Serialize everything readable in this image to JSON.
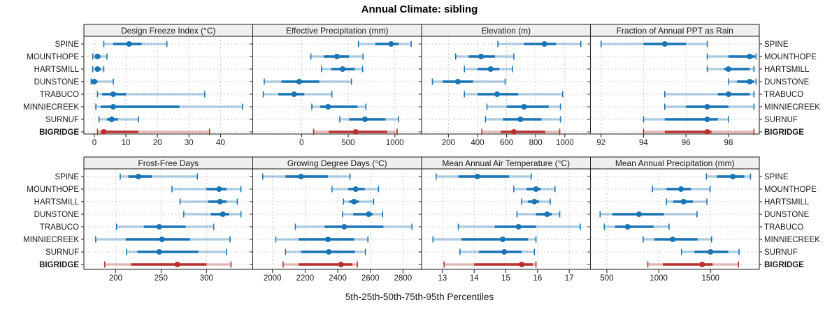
{
  "title": "Annual Climate: sibling",
  "caption": "5th-25th-50th-75th-95th Percentiles",
  "percentile_labels": [
    "5th",
    "25th",
    "50th",
    "75th",
    "95th"
  ],
  "sites": [
    "SPINE",
    "MOUNTHOPE",
    "HARTSMILL",
    "DUNSTONE",
    "TRABUCO",
    "MINNIECREEK",
    "SURNUF",
    "BIGRIDGE"
  ],
  "highlight_site": "BIGRIDGE",
  "colors": {
    "series": "#1b74b4",
    "highlight": "#b9332e",
    "grid": "#c9c9c9",
    "strip_bg": "#efefef",
    "border": "#1a1a1a",
    "text": "#1a1a1a"
  },
  "chart_data": [
    {
      "type": "dot-whisker",
      "title": "Design Freeze Index (°C)",
      "row": 0,
      "col": 0,
      "xlim": [
        -3.3,
        50.2
      ],
      "ticks": [
        0,
        10,
        20,
        30,
        40
      ],
      "grid": true,
      "series": [
        {
          "name": "SPINE",
          "values": [
            3,
            6,
            11,
            15,
            23
          ]
        },
        {
          "name": "MOUNTHOPE",
          "values": [
            -0.5,
            0.5,
            1,
            2,
            4
          ]
        },
        {
          "name": "HARTSMILL",
          "values": [
            -0.5,
            0.5,
            1,
            2,
            3
          ]
        },
        {
          "name": "DUNSTONE",
          "values": [
            -1,
            -0.5,
            0,
            1,
            6
          ]
        },
        {
          "name": "TRABUCO",
          "values": [
            1,
            2.5,
            6,
            10,
            35
          ]
        },
        {
          "name": "MINNIECREEK",
          "values": [
            0.5,
            2,
            6,
            27,
            47
          ]
        },
        {
          "name": "SURNUF",
          "values": [
            1.5,
            4,
            5.5,
            7.5,
            14
          ]
        },
        {
          "name": "BIGRIDGE",
          "values": [
            1,
            2,
            3,
            14,
            36.5
          ]
        }
      ]
    },
    {
      "type": "dot-whisker",
      "title": "Effective Precipitation (mm)",
      "row": 0,
      "col": 1,
      "xlim": [
        -523,
        1287
      ],
      "ticks": [
        0,
        500,
        1000
      ],
      "grid": true,
      "series": [
        {
          "name": "SPINE",
          "values": [
            610,
            790,
            960,
            1040,
            1175
          ]
        },
        {
          "name": "MOUNTHOPE",
          "values": [
            100,
            240,
            380,
            510,
            660
          ]
        },
        {
          "name": "HARTSMILL",
          "values": [
            215,
            320,
            440,
            570,
            655
          ]
        },
        {
          "name": "DUNSTONE",
          "values": [
            -400,
            -215,
            -25,
            190,
            535
          ]
        },
        {
          "name": "TRABUCO",
          "values": [
            -410,
            -250,
            -80,
            30,
            325
          ]
        },
        {
          "name": "MINNIECREEK",
          "values": [
            110,
            200,
            285,
            600,
            690
          ]
        },
        {
          "name": "SURNUF",
          "values": [
            410,
            510,
            680,
            900,
            1040
          ]
        },
        {
          "name": "BIGRIDGE",
          "values": [
            130,
            290,
            580,
            920,
            1025
          ]
        }
      ]
    },
    {
      "type": "dot-whisker",
      "title": "Elevation (m)",
      "row": 0,
      "col": 2,
      "xlim": [
        16,
        1176
      ],
      "ticks": [
        200,
        400,
        600,
        800,
        1000
      ],
      "grid": true,
      "series": [
        {
          "name": "SPINE",
          "values": [
            540,
            720,
            860,
            940,
            1110
          ]
        },
        {
          "name": "MOUNTHOPE",
          "values": [
            250,
            340,
            425,
            520,
            650
          ]
        },
        {
          "name": "HARTSMILL",
          "values": [
            310,
            400,
            490,
            550,
            640
          ]
        },
        {
          "name": "DUNSTONE",
          "values": [
            90,
            160,
            265,
            370,
            590
          ]
        },
        {
          "name": "TRABUCO",
          "values": [
            310,
            400,
            535,
            680,
            985
          ]
        },
        {
          "name": "MINNIECREEK",
          "values": [
            465,
            600,
            720,
            890,
            970
          ]
        },
        {
          "name": "SURNUF",
          "values": [
            455,
            575,
            695,
            840,
            970
          ]
        },
        {
          "name": "BIGRIDGE",
          "values": [
            430,
            560,
            650,
            865,
            965
          ]
        }
      ]
    },
    {
      "type": "dot-whisker",
      "title": "Fraction of Annual PPT as Rain",
      "row": 0,
      "col": 3,
      "xlim": [
        91.5,
        99.45
      ],
      "ticks": [
        92,
        94,
        96,
        98
      ],
      "grid": true,
      "series": [
        {
          "name": "SPINE",
          "values": [
            92,
            94,
            95,
            96,
            97
          ]
        },
        {
          "name": "MOUNTHOPE",
          "values": [
            97,
            98,
            99,
            99.25,
            99.3
          ]
        },
        {
          "name": "HARTSMILL",
          "values": [
            97,
            97.8,
            98,
            99,
            99.2
          ]
        },
        {
          "name": "DUNSTONE",
          "values": [
            98,
            98.4,
            99,
            99.2,
            99.3
          ]
        },
        {
          "name": "TRABUCO",
          "values": [
            95,
            97.5,
            98,
            99,
            99.2
          ]
        },
        {
          "name": "MINNIECREEK",
          "values": [
            95,
            96,
            97,
            98,
            99.2
          ]
        },
        {
          "name": "SURNUF",
          "values": [
            94,
            95,
            97,
            97.5,
            98
          ]
        },
        {
          "name": "BIGRIDGE",
          "values": [
            94,
            95,
            97,
            97.2,
            99.2
          ]
        }
      ]
    },
    {
      "type": "dot-whisker",
      "title": "Frost-Free Days",
      "row": 1,
      "col": 0,
      "xlim": [
        165,
        351
      ],
      "ticks": [
        200,
        250,
        300
      ],
      "grid": true,
      "series": [
        {
          "name": "SPINE",
          "values": [
            205,
            214,
            225,
            240,
            290
          ]
        },
        {
          "name": "MOUNTHOPE",
          "values": [
            262,
            300,
            314,
            322,
            338
          ]
        },
        {
          "name": "HARTSMILL",
          "values": [
            271,
            302,
            315,
            322,
            334
          ]
        },
        {
          "name": "DUNSTONE",
          "values": [
            275,
            305,
            318,
            325,
            338
          ]
        },
        {
          "name": "TRABUCO",
          "values": [
            201,
            231,
            248,
            277,
            308
          ]
        },
        {
          "name": "MINNIECREEK",
          "values": [
            178,
            211,
            251,
            282,
            326
          ]
        },
        {
          "name": "SURNUF",
          "values": [
            212,
            224,
            248,
            291,
            322
          ]
        },
        {
          "name": "BIGRIDGE",
          "values": [
            188,
            217,
            268,
            300,
            327
          ]
        }
      ]
    },
    {
      "type": "dot-whisker",
      "title": "Growing Degree Days (°C)",
      "row": 1,
      "col": 1,
      "xlim": [
        1879,
        2914
      ],
      "ticks": [
        2000,
        2200,
        2400,
        2600,
        2800
      ],
      "grid": true,
      "series": [
        {
          "name": "SPINE",
          "values": [
            1940,
            2080,
            2175,
            2340,
            2475
          ]
        },
        {
          "name": "MOUNTHOPE",
          "values": [
            2365,
            2465,
            2510,
            2565,
            2650
          ]
        },
        {
          "name": "HARTSMILL",
          "values": [
            2435,
            2470,
            2500,
            2530,
            2620
          ]
        },
        {
          "name": "DUNSTONE",
          "values": [
            2430,
            2495,
            2590,
            2615,
            2675
          ]
        },
        {
          "name": "TRABUCO",
          "values": [
            2140,
            2320,
            2440,
            2680,
            2855
          ]
        },
        {
          "name": "MINNIECREEK",
          "values": [
            2020,
            2160,
            2340,
            2500,
            2585
          ]
        },
        {
          "name": "SURNUF",
          "values": [
            2080,
            2175,
            2345,
            2505,
            2570
          ]
        },
        {
          "name": "BIGRIDGE",
          "values": [
            2065,
            2160,
            2420,
            2490,
            2520
          ]
        }
      ]
    },
    {
      "type": "dot-whisker",
      "title": "Mean Annual Air Temperature (°C)",
      "row": 1,
      "col": 2,
      "xlim": [
        12.34,
        17.67
      ],
      "ticks": [
        13,
        14,
        15,
        16,
        17
      ],
      "grid": true,
      "series": [
        {
          "name": "SPINE",
          "values": [
            12.8,
            13.5,
            14.1,
            15.1,
            15.8
          ]
        },
        {
          "name": "MOUNTHOPE",
          "values": [
            15.25,
            15.65,
            15.95,
            16.1,
            16.55
          ]
        },
        {
          "name": "HARTSMILL",
          "values": [
            15.5,
            15.7,
            15.9,
            16.05,
            16.4
          ]
        },
        {
          "name": "DUNSTONE",
          "values": [
            15.35,
            15.95,
            16.3,
            16.45,
            16.7
          ]
        },
        {
          "name": "TRABUCO",
          "values": [
            13.5,
            14.65,
            15.4,
            15.95,
            17.35
          ]
        },
        {
          "name": "MINNIECREEK",
          "values": [
            12.7,
            13.6,
            14.9,
            15.7,
            15.95
          ]
        },
        {
          "name": "SURNUF",
          "values": [
            13.55,
            14.15,
            14.95,
            15.5,
            15.9
          ]
        },
        {
          "name": "BIGRIDGE",
          "values": [
            13.05,
            14.0,
            15.5,
            15.85,
            15.95
          ]
        }
      ]
    },
    {
      "type": "dot-whisker",
      "title": "Mean Annual Precipitation (mm)",
      "row": 1,
      "col": 3,
      "xlim": [
        342,
        1970
      ],
      "ticks": [
        500,
        1000,
        1500
      ],
      "grid": true,
      "series": [
        {
          "name": "SPINE",
          "values": [
            1460,
            1560,
            1715,
            1825,
            1885
          ]
        },
        {
          "name": "MOUNTHOPE",
          "values": [
            940,
            1075,
            1215,
            1310,
            1495
          ]
        },
        {
          "name": "HARTSMILL",
          "values": [
            1075,
            1140,
            1240,
            1330,
            1465
          ]
        },
        {
          "name": "DUNSTONE",
          "values": [
            435,
            555,
            810,
            1050,
            1370
          ]
        },
        {
          "name": "TRABUCO",
          "values": [
            475,
            580,
            700,
            950,
            1100
          ]
        },
        {
          "name": "MINNIECREEK",
          "values": [
            850,
            960,
            1135,
            1375,
            1510
          ]
        },
        {
          "name": "SURNUF",
          "values": [
            1220,
            1345,
            1500,
            1670,
            1775
          ]
        },
        {
          "name": "BIGRIDGE",
          "values": [
            895,
            1040,
            1420,
            1520,
            1770
          ]
        }
      ]
    }
  ]
}
